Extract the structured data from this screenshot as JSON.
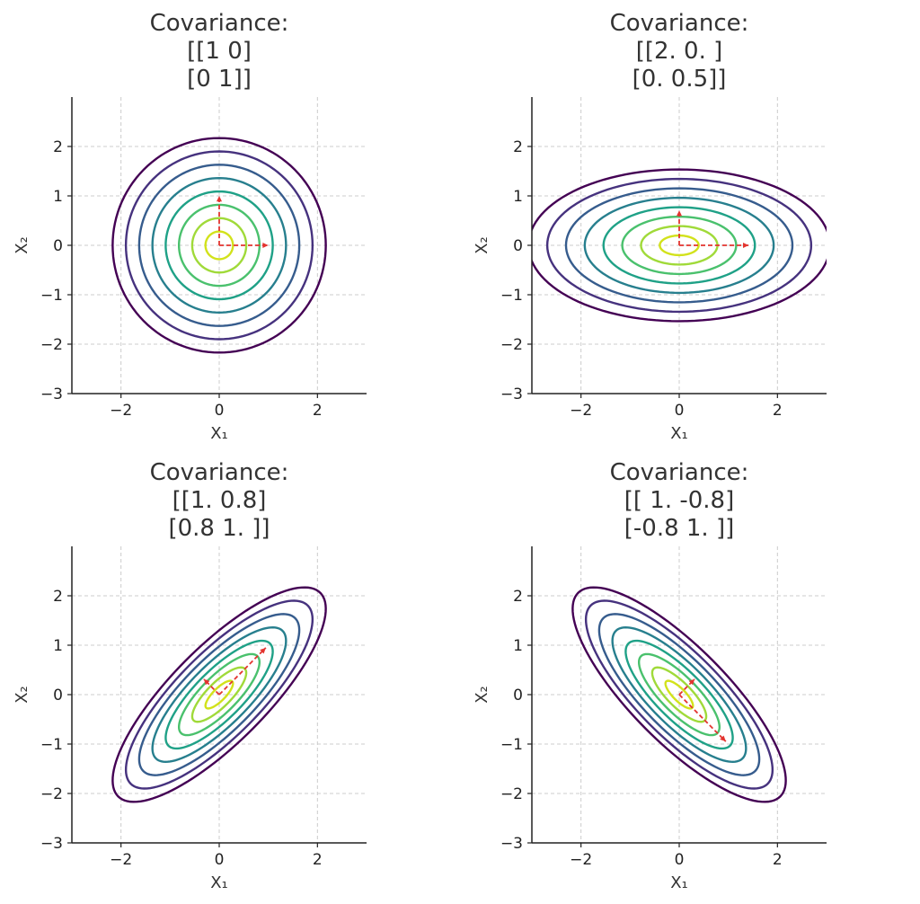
{
  "chart_data": [
    {
      "type": "contour",
      "title_lines": [
        "Covariance:",
        "[[1 0]",
        " [0 1]]"
      ],
      "covariance": [
        [
          1,
          0
        ],
        [
          0,
          1
        ]
      ],
      "mean": [
        0,
        0
      ],
      "eigenvectors": [
        [
          1,
          0
        ],
        [
          0,
          1
        ]
      ],
      "eigenvalues": [
        1,
        1
      ],
      "xlabel": "X₁",
      "ylabel": "X₂",
      "xlim": [
        -3,
        3
      ],
      "ylim": [
        -3,
        3
      ],
      "xticks": [
        -2,
        0,
        2
      ],
      "yticks": [
        -3,
        -2,
        -1,
        0,
        1,
        2
      ],
      "xtick_labels": [
        "−2",
        "0",
        "2"
      ],
      "ytick_labels": [
        "−3",
        "−2",
        "−1",
        "0",
        "1",
        "2"
      ],
      "contour_levels": 8,
      "grid": true,
      "colormap": "viridis"
    },
    {
      "type": "contour",
      "title_lines": [
        "Covariance:",
        "[[2.  0. ]",
        " [0.  0.5]]"
      ],
      "covariance": [
        [
          2,
          0
        ],
        [
          0,
          0.5
        ]
      ],
      "mean": [
        0,
        0
      ],
      "eigenvectors": [
        [
          1,
          0
        ],
        [
          0,
          1
        ]
      ],
      "eigenvalues": [
        2,
        0.5
      ],
      "xlabel": "X₁",
      "ylabel": "X₂",
      "xlim": [
        -3,
        3
      ],
      "ylim": [
        -3,
        3
      ],
      "xticks": [
        -2,
        0,
        2
      ],
      "yticks": [
        -3,
        -2,
        -1,
        0,
        1,
        2
      ],
      "xtick_labels": [
        "−2",
        "0",
        "2"
      ],
      "ytick_labels": [
        "−3",
        "−2",
        "−1",
        "0",
        "1",
        "2"
      ],
      "contour_levels": 8,
      "grid": true,
      "colormap": "viridis"
    },
    {
      "type": "contour",
      "title_lines": [
        "Covariance:",
        "[[1.  0.8]",
        " [0.8 1. ]]"
      ],
      "covariance": [
        [
          1,
          0.8
        ],
        [
          0.8,
          1
        ]
      ],
      "mean": [
        0,
        0
      ],
      "eigenvectors": [
        [
          0.7071,
          0.7071
        ],
        [
          -0.7071,
          0.7071
        ]
      ],
      "eigenvalues": [
        1.8,
        0.2
      ],
      "xlabel": "X₁",
      "ylabel": "X₂",
      "xlim": [
        -3,
        3
      ],
      "ylim": [
        -3,
        3
      ],
      "xticks": [
        -2,
        0,
        2
      ],
      "yticks": [
        -3,
        -2,
        -1,
        0,
        1,
        2
      ],
      "xtick_labels": [
        "−2",
        "0",
        "2"
      ],
      "ytick_labels": [
        "−3",
        "−2",
        "−1",
        "0",
        "1",
        "2"
      ],
      "contour_levels": 8,
      "grid": true,
      "colormap": "viridis"
    },
    {
      "type": "contour",
      "title_lines": [
        "Covariance:",
        "[[ 1.  -0.8]",
        " [-0.8  1. ]]"
      ],
      "covariance": [
        [
          1,
          -0.8
        ],
        [
          -0.8,
          1
        ]
      ],
      "mean": [
        0,
        0
      ],
      "eigenvectors": [
        [
          0.7071,
          -0.7071
        ],
        [
          0.7071,
          0.7071
        ]
      ],
      "eigenvalues": [
        1.8,
        0.2
      ],
      "xlabel": "X₁",
      "ylabel": "X₂",
      "xlim": [
        -3,
        3
      ],
      "ylim": [
        -3,
        3
      ],
      "xticks": [
        -2,
        0,
        2
      ],
      "yticks": [
        -3,
        -2,
        -1,
        0,
        1,
        2
      ],
      "xtick_labels": [
        "−2",
        "0",
        "2"
      ],
      "ytick_labels": [
        "−3",
        "−2",
        "−1",
        "0",
        "1",
        "2"
      ],
      "contour_levels": 8,
      "grid": true,
      "colormap": "viridis"
    }
  ],
  "colors": {
    "contours": [
      "#440154",
      "#46327e",
      "#365c8d",
      "#277f8e",
      "#1fa187",
      "#4ac16d",
      "#a0da39",
      "#d2e21b"
    ],
    "eigen_arrow": "#e3342f",
    "grid": "#cccccc",
    "axes": "#222222"
  }
}
